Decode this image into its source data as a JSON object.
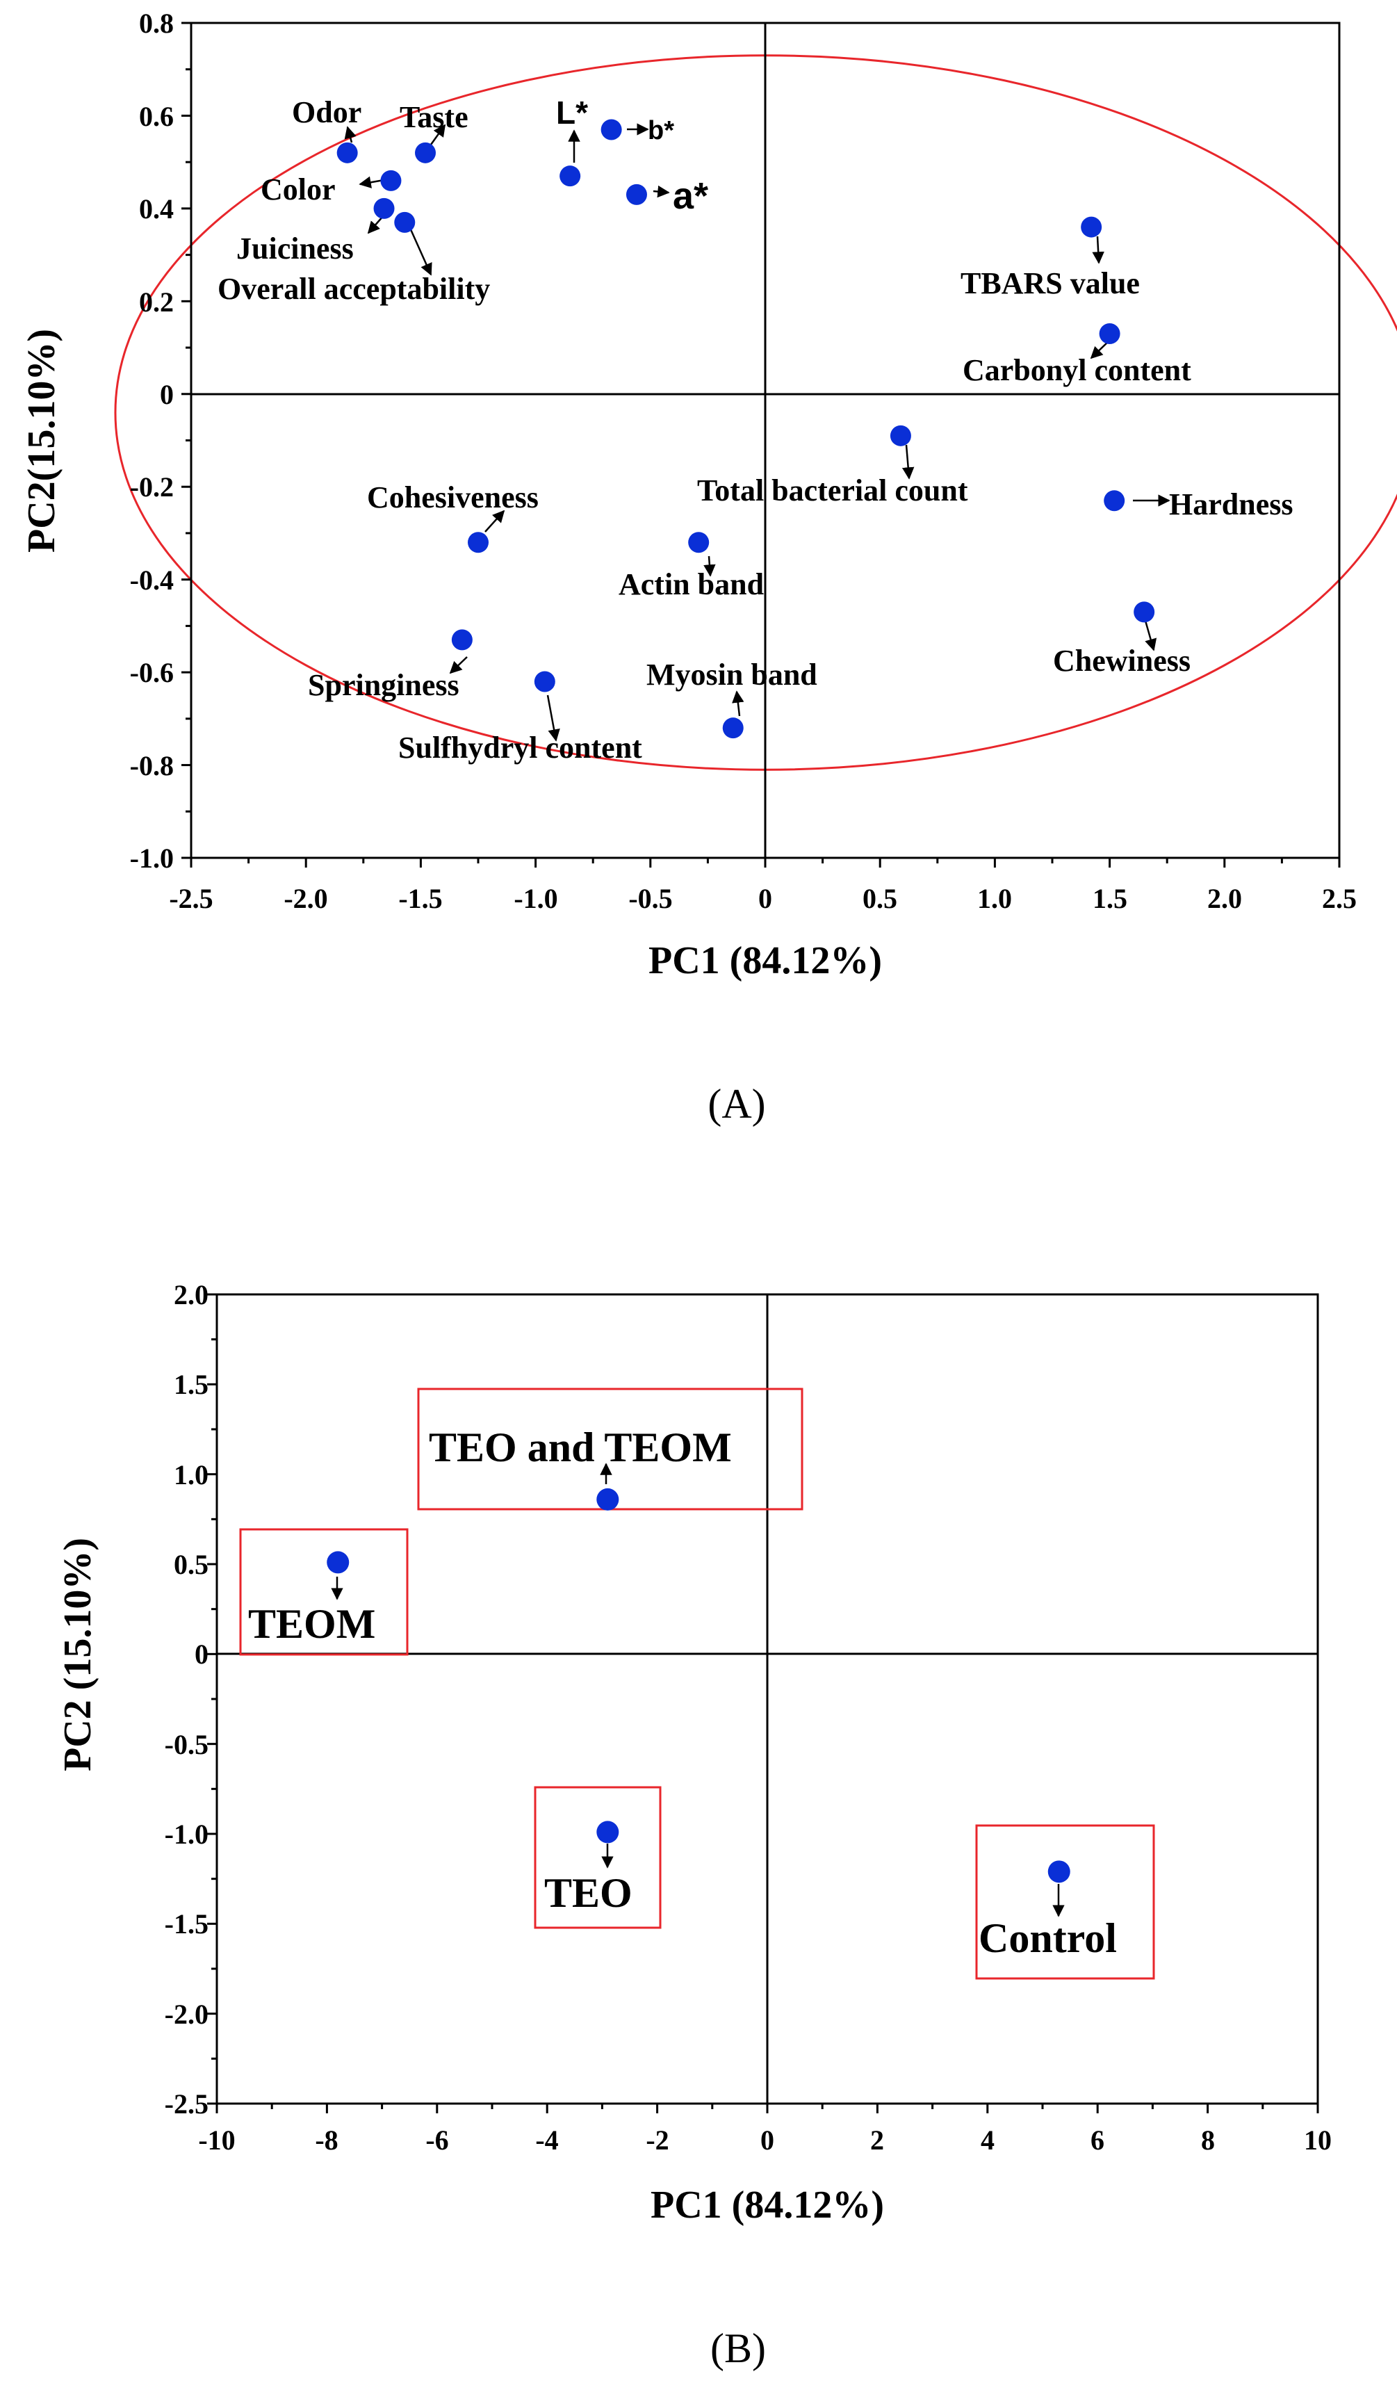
{
  "colors": {
    "marker": "#0a2fd6",
    "ellipse": "#e8262b",
    "box": "#e8262b",
    "axis": "#000000"
  },
  "chart_data": [
    {
      "type": "scatter",
      "panel_label": "(A)",
      "xlabel": "PC1  (84.12%)",
      "ylabel": "PC2(15.10%)",
      "xlim": [
        -2.5,
        2.5
      ],
      "ylim": [
        -1.0,
        0.8
      ],
      "xticks": [
        "-2.5",
        "-2.0",
        "-1.5",
        "-1.0",
        "-0.5",
        "0",
        "0.5",
        "1.0",
        "1.5",
        "2.0",
        "2.5"
      ],
      "yticks": [
        "-1.0",
        "-0.8",
        "-0.6",
        "-0.4",
        "-0.2",
        "0",
        "0.2",
        "0.4",
        "0.6",
        "0.8"
      ],
      "ellipse": {
        "center": [
          0.0,
          -0.04
        ],
        "radius_x": 2.83,
        "radius_y": 0.77
      },
      "points": [
        {
          "label": "Odor",
          "x": -1.82,
          "y": 0.52
        },
        {
          "label": "Taste",
          "x": -1.48,
          "y": 0.52
        },
        {
          "label": "Color",
          "x": -1.63,
          "y": 0.46
        },
        {
          "label": "Juiciness",
          "x": -1.66,
          "y": 0.4
        },
        {
          "label": "Overall acceptability",
          "x": -1.57,
          "y": 0.37
        },
        {
          "label": "L*",
          "x": -0.85,
          "y": 0.47
        },
        {
          "label": "b*",
          "x": -0.67,
          "y": 0.57
        },
        {
          "label": "a*",
          "x": -0.56,
          "y": 0.43
        },
        {
          "label": "TBARS value",
          "x": 1.42,
          "y": 0.36
        },
        {
          "label": "Carbonyl content",
          "x": 1.5,
          "y": 0.13
        },
        {
          "label": "Total bacterial count",
          "x": 0.59,
          "y": -0.09
        },
        {
          "label": "Hardness",
          "x": 1.52,
          "y": -0.23
        },
        {
          "label": "Cohesiveness",
          "x": -1.25,
          "y": -0.32
        },
        {
          "label": "Actin band",
          "x": -0.29,
          "y": -0.32
        },
        {
          "label": "Chewiness",
          "x": 1.65,
          "y": -0.47
        },
        {
          "label": "Springiness",
          "x": -1.32,
          "y": -0.53
        },
        {
          "label": "Sulfhydryl content",
          "x": -0.96,
          "y": -0.62
        },
        {
          "label": "Myosin band",
          "x": -0.14,
          "y": -0.72
        }
      ]
    },
    {
      "type": "scatter",
      "panel_label": "(B)",
      "xlabel": "PC1 (84.12%)",
      "ylabel": "PC2 (15.10%)",
      "xlim": [
        -10,
        10
      ],
      "ylim": [
        -2.5,
        2.0
      ],
      "xticks": [
        "-10",
        "-8",
        "-6",
        "-4",
        "-2",
        "0",
        "2",
        "4",
        "6",
        "8",
        "10"
      ],
      "yticks": [
        "-2.5",
        "-2.0",
        "-1.5",
        "-1.0",
        "-0.5",
        "0",
        "0.5",
        "1.0",
        "1.5",
        "2.0"
      ],
      "points": [
        {
          "label": "TEO and TEOM",
          "x": -2.9,
          "y": 0.86
        },
        {
          "label": "TEOM",
          "x": -7.8,
          "y": 0.51
        },
        {
          "label": "TEO",
          "x": -2.9,
          "y": -0.99
        },
        {
          "label": "Control",
          "x": 5.3,
          "y": -1.21
        }
      ]
    }
  ]
}
